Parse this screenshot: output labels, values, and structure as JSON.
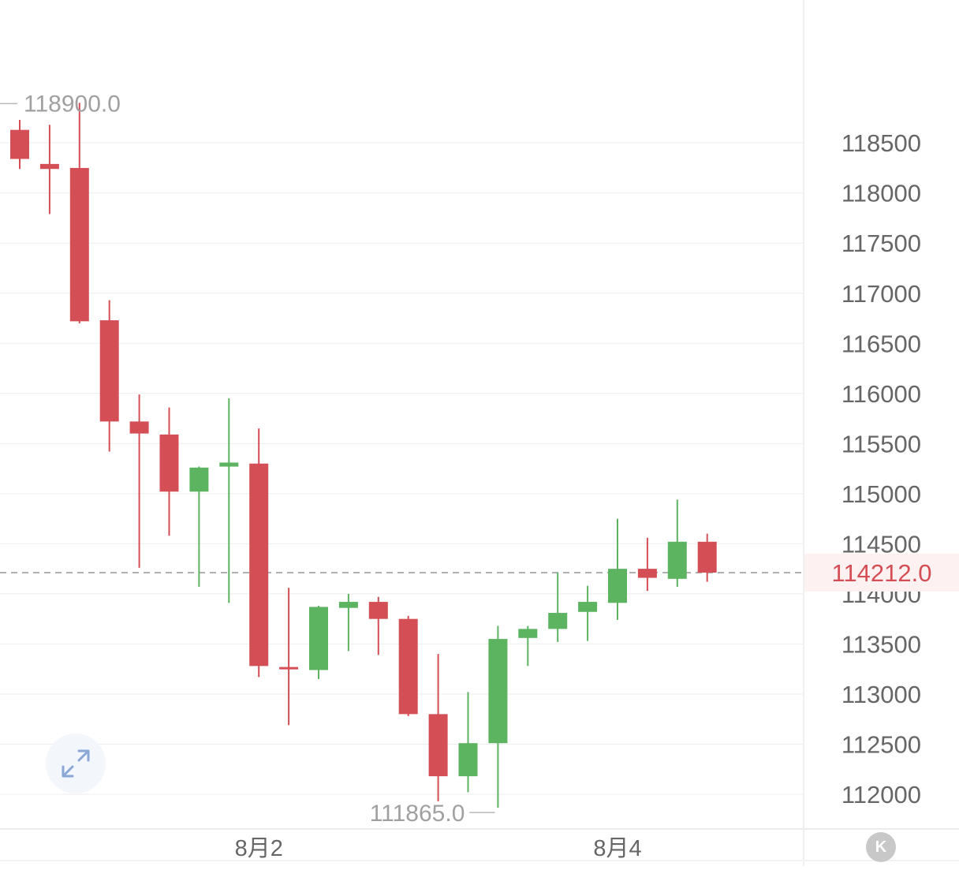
{
  "colors": {
    "up": "#5cb360",
    "down": "#d44e55",
    "current_price": "#d44e55",
    "axis_text": "#666666",
    "annotation_text": "#a0a0a0",
    "grid": "#eeeeee",
    "icon_blue": "#8ba7d6"
  },
  "icons": {
    "expand": "expand-arrows-icon",
    "kline": "k-letter-icon"
  },
  "kline_button_label": "K",
  "chart_data": {
    "type": "candlestick",
    "title": "",
    "xlabel": "",
    "ylabel": "",
    "ylim": [
      111650,
      119900
    ],
    "y_ticks": [
      118500,
      118000,
      117500,
      117000,
      116500,
      116000,
      115500,
      115000,
      114500,
      114000,
      113500,
      113000,
      112500,
      112000
    ],
    "x_labels": [
      {
        "label": "8月2",
        "candle_index": 8
      },
      {
        "label": "8月4",
        "candle_index": 20
      }
    ],
    "high_annotation": {
      "label": "118900.0",
      "value": 118900,
      "candle_index": 2
    },
    "low_annotation": {
      "label": "111865.0",
      "value": 111865,
      "candle_index": 16
    },
    "current_price": {
      "label": "114212.0",
      "value": 114212
    },
    "grid": true,
    "candles": [
      {
        "open": 118630,
        "high": 118730,
        "low": 118240,
        "close": 118340
      },
      {
        "open": 118290,
        "high": 118680,
        "low": 117790,
        "close": 118240
      },
      {
        "open": 118250,
        "high": 118900,
        "low": 116700,
        "close": 116720
      },
      {
        "open": 116730,
        "high": 116930,
        "low": 115420,
        "close": 115720
      },
      {
        "open": 115720,
        "high": 115990,
        "low": 114260,
        "close": 115600
      },
      {
        "open": 115590,
        "high": 115860,
        "low": 114580,
        "close": 115020
      },
      {
        "open": 115020,
        "high": 115270,
        "low": 114070,
        "close": 115260
      },
      {
        "open": 115270,
        "high": 115950,
        "low": 113910,
        "close": 115310
      },
      {
        "open": 115300,
        "high": 115650,
        "low": 113170,
        "close": 113280
      },
      {
        "open": 113270,
        "high": 114060,
        "low": 112690,
        "close": 113260
      },
      {
        "open": 113240,
        "high": 113880,
        "low": 113150,
        "close": 113870
      },
      {
        "open": 113860,
        "high": 114000,
        "low": 113430,
        "close": 113920
      },
      {
        "open": 113920,
        "high": 113970,
        "low": 113390,
        "close": 113750
      },
      {
        "open": 113750,
        "high": 113780,
        "low": 112780,
        "close": 112800
      },
      {
        "open": 112800,
        "high": 113400,
        "low": 111930,
        "close": 112180
      },
      {
        "open": 112180,
        "high": 113020,
        "low": 112020,
        "close": 112510
      },
      {
        "open": 112510,
        "high": 113680,
        "low": 111865,
        "close": 113550
      },
      {
        "open": 113560,
        "high": 113680,
        "low": 113280,
        "close": 113650
      },
      {
        "open": 113650,
        "high": 114210,
        "low": 113520,
        "close": 113810
      },
      {
        "open": 113820,
        "high": 114080,
        "low": 113530,
        "close": 113920
      },
      {
        "open": 113910,
        "high": 114750,
        "low": 113740,
        "close": 114250
      },
      {
        "open": 114250,
        "high": 114560,
        "low": 114030,
        "close": 114160
      },
      {
        "open": 114150,
        "high": 114940,
        "low": 114070,
        "close": 114520
      },
      {
        "open": 114520,
        "high": 114600,
        "low": 114120,
        "close": 114212
      }
    ]
  }
}
